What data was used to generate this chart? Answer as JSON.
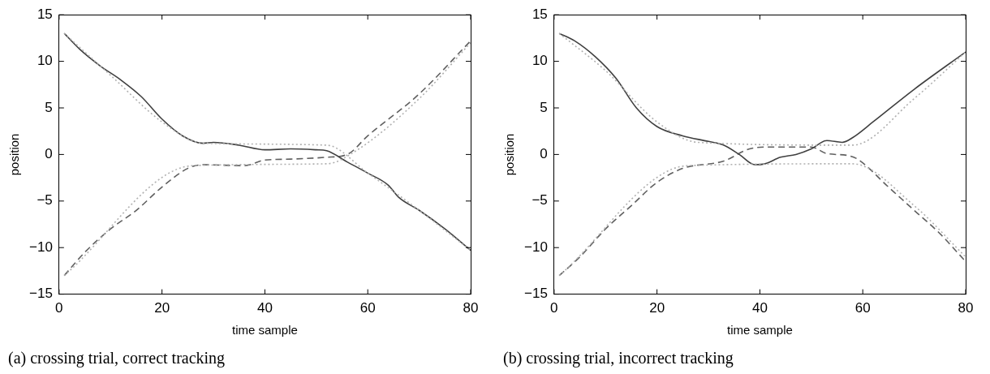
{
  "chart_data": [
    {
      "type": "line",
      "title": "(a) crossing trial, correct tracking",
      "xlabel": "time sample",
      "ylabel": "position",
      "xlim": [
        0,
        80
      ],
      "xticks": [
        0,
        20,
        40,
        60,
        80
      ],
      "ylim": [
        -15,
        15
      ],
      "yticks": [
        -15,
        -10,
        -5,
        0,
        5,
        10,
        15
      ],
      "grid": false,
      "legend": false,
      "marker": "none",
      "series": [
        {
          "color": "#b0b0b0",
          "line_style": "dotted",
          "x": [
            1,
            10,
            20,
            28,
            52,
            60,
            70,
            80
          ],
          "values": [
            13,
            8.5,
            3.5,
            1.2,
            1,
            -2,
            -6,
            -10.3
          ]
        },
        {
          "color": "#b0b0b0",
          "line_style": "dotted",
          "x": [
            1,
            26,
            52,
            58,
            70,
            80
          ],
          "values": [
            -13,
            -1.2,
            -1,
            0.5,
            6,
            12
          ]
        },
        {
          "color": "#404040",
          "line_style": "solid",
          "x": [
            1,
            4,
            8,
            12,
            16,
            20,
            24,
            28,
            30,
            35,
            40,
            45,
            50,
            52,
            56,
            60,
            64,
            66,
            70,
            75,
            80
          ],
          "values": [
            13,
            11.3,
            9.5,
            8,
            6.2,
            3.8,
            2,
            1.2,
            1.3,
            1,
            0.5,
            0.6,
            0.5,
            0.4,
            -0.8,
            -2,
            -3.3,
            -4.6,
            -6,
            -8,
            -10.3
          ]
        },
        {
          "color": "#606060",
          "line_style": "dashed",
          "x": [
            1,
            5,
            10,
            15,
            20,
            25,
            28,
            36,
            40,
            45,
            52,
            56,
            60,
            70,
            80
          ],
          "values": [
            -13,
            -10.5,
            -8,
            -6,
            -3.5,
            -1.5,
            -1.1,
            -1.2,
            -0.6,
            -0.5,
            -0.3,
            0,
            2,
            6.5,
            12.2
          ]
        }
      ]
    },
    {
      "type": "line",
      "title": "(b) crossing trial, incorrect tracking",
      "xlabel": "time sample",
      "ylabel": "position",
      "xlim": [
        0,
        80
      ],
      "xticks": [
        0,
        20,
        40,
        60,
        80
      ],
      "ylim": [
        -15,
        15
      ],
      "yticks": [
        -15,
        -10,
        -5,
        0,
        5,
        10,
        15
      ],
      "grid": false,
      "legend": false,
      "marker": "none",
      "series": [
        {
          "color": "#b0b0b0",
          "line_style": "dotted",
          "x": [
            1,
            10,
            20,
            28,
            58,
            70,
            80
          ],
          "values": [
            13,
            9,
            3.5,
            1.3,
            1,
            6,
            11
          ]
        },
        {
          "color": "#b0b0b0",
          "line_style": "dotted",
          "x": [
            1,
            26,
            58,
            70,
            80
          ],
          "values": [
            -13,
            -1.2,
            -1,
            -5.5,
            -11
          ]
        },
        {
          "color": "#404040",
          "line_style": "solid",
          "x": [
            1,
            4,
            8,
            12,
            16,
            20,
            25,
            30,
            33,
            36,
            39,
            41,
            44,
            47,
            50,
            53,
            56,
            58,
            62,
            70,
            80
          ],
          "values": [
            13,
            12.2,
            10.5,
            8.2,
            5,
            3,
            2,
            1.4,
            1,
            0,
            -1.1,
            -1,
            -0.3,
            0,
            0.6,
            1.5,
            1.3,
            1.8,
            3.5,
            7,
            11
          ]
        },
        {
          "color": "#606060",
          "line_style": "dashed",
          "x": [
            1,
            5,
            10,
            15,
            20,
            25,
            33,
            38,
            42,
            50,
            53,
            57,
            59,
            65,
            70,
            75,
            80
          ],
          "values": [
            -13,
            -11,
            -8,
            -5.5,
            -3,
            -1.5,
            -0.7,
            0.6,
            0.8,
            0.8,
            0.1,
            -0.1,
            -0.5,
            -3.5,
            -6,
            -8.5,
            -11.5
          ]
        }
      ]
    }
  ]
}
